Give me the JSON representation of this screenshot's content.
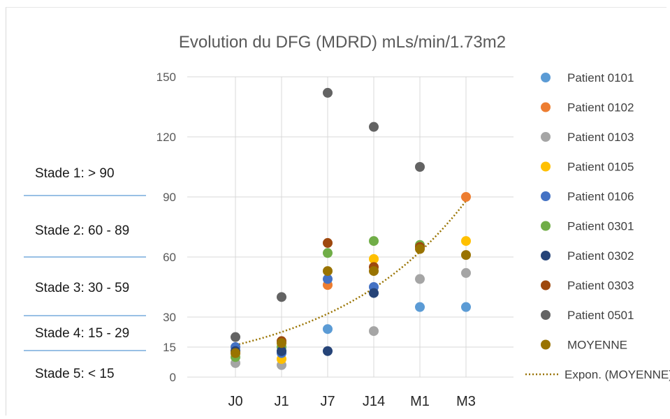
{
  "chart_data": {
    "type": "scatter",
    "title": "Evolution du DFG (MDRD) mLs/min/1.73m2",
    "categories": [
      "J0",
      "J1",
      "J7",
      "J14",
      "M1",
      "M3"
    ],
    "y_ticks": [
      0,
      15,
      30,
      60,
      90,
      120,
      150
    ],
    "ylim": [
      0,
      150
    ],
    "grid": true,
    "legend_position": "right",
    "series": [
      {
        "name": "Patient 0101",
        "color": "#5B9BD5",
        "values": [
          null,
          null,
          24,
          null,
          35,
          35
        ]
      },
      {
        "name": "Patient 0102",
        "color": "#ED7D31",
        "values": [
          null,
          null,
          46,
          null,
          null,
          90
        ]
      },
      {
        "name": "Patient 0103",
        "color": "#A5A5A5",
        "values": [
          7,
          6,
          null,
          23,
          49,
          52
        ]
      },
      {
        "name": "Patient 0105",
        "color": "#FFC000",
        "values": [
          null,
          9,
          null,
          59,
          null,
          68
        ]
      },
      {
        "name": "Patient 0106",
        "color": "#4472C4",
        "values": [
          15,
          12,
          49,
          45,
          null,
          null
        ]
      },
      {
        "name": "Patient 0301",
        "color": "#70AD47",
        "values": [
          10,
          15,
          62,
          68,
          66,
          null
        ]
      },
      {
        "name": "Patient 0302",
        "color": "#264478",
        "values": [
          13,
          13,
          13,
          42,
          null,
          null
        ]
      },
      {
        "name": "Patient 0303",
        "color": "#9E480E",
        "values": [
          12,
          18,
          67,
          55,
          65,
          null
        ]
      },
      {
        "name": "Patient 0501",
        "color": "#636363",
        "values": [
          20,
          40,
          142,
          125,
          105,
          null
        ]
      },
      {
        "name": "MOYENNE",
        "color": "#997300",
        "values": [
          12,
          17,
          53,
          53,
          64,
          61
        ]
      }
    ],
    "trendline": {
      "name": "Expon. (MOYENNE)",
      "type": "exponential",
      "color": "#997300",
      "values": [
        16,
        21,
        30,
        43,
        62,
        88
      ]
    }
  },
  "stages": [
    "Stade 1: > 90",
    "Stade 2: 60 - 89",
    "Stade 3: 30 - 59",
    "Stade 4: 15 - 29",
    "Stade 5:   < 15"
  ]
}
